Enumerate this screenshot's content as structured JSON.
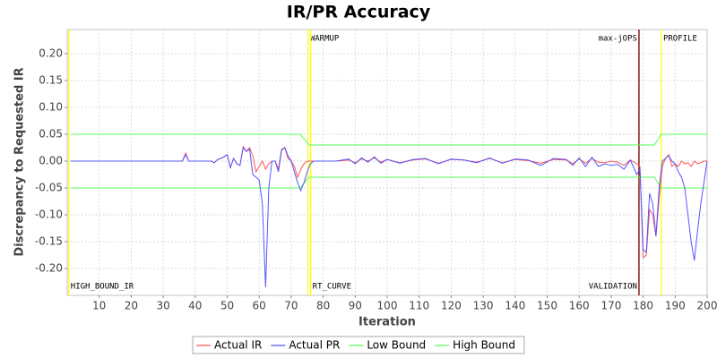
{
  "chart_data": {
    "type": "line",
    "title": "IR/PR Accuracy",
    "x_label": "Iteration",
    "y_label": "Discrepancy to Requested IR",
    "xlim": [
      0,
      200
    ],
    "ylim": [
      -0.25,
      0.245
    ],
    "xticks": [
      10,
      20,
      30,
      40,
      50,
      60,
      70,
      80,
      90,
      100,
      110,
      120,
      130,
      140,
      150,
      160,
      170,
      180,
      190,
      200
    ],
    "yticks": [
      {
        "value": -0.2,
        "label": "-0.20"
      },
      {
        "value": -0.15,
        "label": "-0.15"
      },
      {
        "value": -0.1,
        "label": "-0.10"
      },
      {
        "value": -0.05,
        "label": "-0.05"
      },
      {
        "value": 0,
        "label": "0.00"
      },
      {
        "value": 0.05,
        "label": "0.05"
      },
      {
        "value": 0.1,
        "label": "0.10"
      },
      {
        "value": 0.15,
        "label": "0.15"
      },
      {
        "value": 0.2,
        "label": "0.20"
      }
    ],
    "grid": true,
    "legend": "bottom",
    "markers": [
      {
        "label": "HIGH_BOUND_IR",
        "value": 0.5,
        "color": "#ffff00",
        "position": "bottom",
        "anchor": "start"
      },
      {
        "label": "WARMUP",
        "value": 75.3,
        "color": "#ffff00",
        "position": "top",
        "anchor": "start"
      },
      {
        "label": "RT_CURVE",
        "value": 76.1,
        "color": "#ffff00",
        "position": "bottom",
        "anchor": "start"
      },
      {
        "label": "max-jOPS",
        "value": 178.7,
        "color": "#800000",
        "position": "top",
        "anchor": "end"
      },
      {
        "label": "VALIDATION",
        "value": 178.7,
        "color": "#800000",
        "position": "bottom",
        "anchor": "end"
      },
      {
        "label": "PROFILE",
        "value": 185.7,
        "color": "#ffff00",
        "position": "top",
        "anchor": "start"
      }
    ],
    "series": [
      {
        "name": "Actual IR",
        "color": "#ff5555",
        "x": [
          1,
          36,
          37,
          38,
          45,
          46,
          47,
          48,
          49,
          50,
          51,
          52,
          53,
          54,
          55,
          56,
          57,
          58,
          59,
          60,
          61,
          62,
          63,
          64,
          65,
          66,
          67,
          68,
          69,
          70,
          71,
          72,
          73,
          74,
          75,
          76,
          80,
          84,
          88,
          90,
          92,
          94,
          96,
          98,
          100,
          104,
          108,
          112,
          116,
          120,
          124,
          128,
          132,
          136,
          140,
          144,
          148,
          152,
          156,
          158,
          160,
          162,
          164,
          166,
          168,
          170,
          172,
          174,
          176,
          178,
          179,
          180,
          181,
          182,
          183,
          184,
          185,
          186,
          187,
          188,
          189,
          190,
          191,
          192,
          193,
          194,
          195,
          196,
          197,
          198,
          199,
          200
        ],
        "values": [
          0,
          0,
          0.015,
          0,
          0,
          -0.003,
          0.003,
          0.005,
          0.008,
          0.012,
          -0.012,
          0.005,
          -0.005,
          -0.008,
          0.027,
          0.018,
          0.025,
          0.01,
          -0.02,
          -0.01,
          0,
          -0.015,
          -0.005,
          0,
          0,
          -0.015,
          0.022,
          0.025,
          0.005,
          0,
          -0.01,
          -0.03,
          -0.015,
          -0.005,
          0,
          0,
          0,
          0,
          0.002,
          -0.003,
          0.004,
          0,
          0.006,
          -0.002,
          0.003,
          -0.003,
          0.002,
          0.004,
          -0.004,
          0.003,
          0.002,
          -0.002,
          0.005,
          -0.003,
          0.003,
          0.001,
          -0.004,
          0.003,
          0.002,
          -0.005,
          0.004,
          -0.004,
          0.005,
          -0.002,
          -0.003,
          0,
          -0.002,
          -0.008,
          0.002,
          -0.005,
          -0.01,
          -0.18,
          -0.175,
          -0.09,
          -0.1,
          -0.14,
          -0.07,
          -0.01,
          0.005,
          0.012,
          -0.01,
          -0.005,
          -0.01,
          0,
          -0.005,
          -0.003,
          -0.01,
          0,
          -0.005,
          -0.003,
          0,
          0
        ]
      },
      {
        "name": "Actual PR",
        "color": "#5555ff",
        "x": [
          1,
          36,
          37,
          38,
          45,
          46,
          47,
          48,
          49,
          50,
          51,
          52,
          53,
          54,
          55,
          56,
          57,
          58,
          59,
          60,
          61,
          62,
          63,
          64,
          65,
          66,
          67,
          68,
          69,
          70,
          71,
          72,
          73,
          74,
          75,
          76,
          77,
          80,
          84,
          88,
          90,
          92,
          94,
          96,
          98,
          100,
          104,
          108,
          112,
          116,
          120,
          124,
          128,
          132,
          136,
          140,
          144,
          148,
          152,
          156,
          158,
          160,
          162,
          164,
          166,
          168,
          170,
          172,
          174,
          176,
          178,
          179,
          180,
          181,
          182,
          183,
          184,
          185,
          186,
          187,
          188,
          189,
          190,
          191,
          192,
          193,
          194,
          195,
          196,
          197,
          198,
          199,
          200
        ],
        "values": [
          0,
          0,
          0.012,
          0,
          0,
          -0.003,
          0.003,
          0.005,
          0.008,
          0.012,
          -0.012,
          0.005,
          -0.005,
          -0.008,
          0.025,
          0.018,
          0.022,
          -0.025,
          -0.03,
          -0.035,
          -0.08,
          -0.235,
          -0.05,
          0,
          0,
          -0.02,
          0.02,
          0.025,
          0.01,
          0,
          -0.02,
          -0.04,
          -0.055,
          -0.04,
          -0.02,
          -0.005,
          0,
          0,
          0,
          0.004,
          -0.005,
          0.006,
          -0.002,
          0.008,
          -0.004,
          0.003,
          -0.004,
          0.003,
          0.005,
          -0.005,
          0.004,
          0.002,
          -0.003,
          0.006,
          -0.004,
          0.004,
          0.002,
          -0.008,
          0.005,
          0.003,
          -0.008,
          0.006,
          -0.01,
          0.007,
          -0.01,
          -0.005,
          -0.008,
          -0.006,
          -0.015,
          0.002,
          -0.025,
          -0.015,
          -0.165,
          -0.17,
          -0.06,
          -0.08,
          -0.14,
          -0.05,
          0,
          0.005,
          0.01,
          0,
          -0.005,
          -0.02,
          -0.03,
          -0.05,
          -0.1,
          -0.15,
          -0.185,
          -0.13,
          -0.08,
          -0.04,
          0
        ]
      },
      {
        "name": "Low Bound",
        "color": "#55ff55",
        "x": [
          1,
          72.8,
          75.6,
          183.5,
          185.7,
          200
        ],
        "values": [
          -0.05,
          -0.05,
          -0.03,
          -0.03,
          -0.05,
          -0.05
        ]
      },
      {
        "name": "High Bound",
        "color": "#55ff55",
        "x": [
          1,
          72.8,
          75.6,
          183.5,
          185.7,
          200
        ],
        "values": [
          0.05,
          0.05,
          0.03,
          0.03,
          0.05,
          0.05
        ]
      }
    ]
  }
}
